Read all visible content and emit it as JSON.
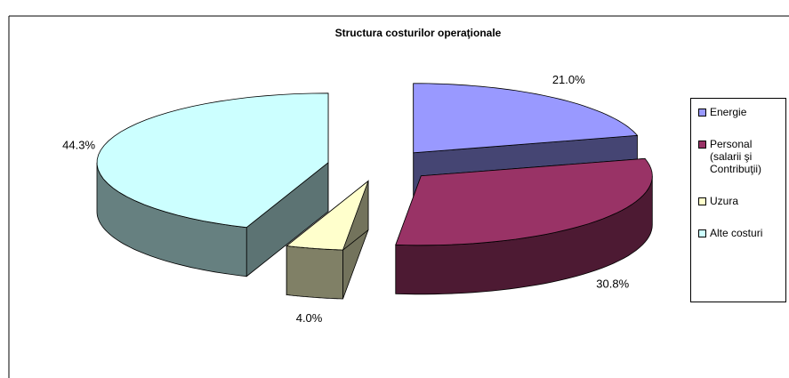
{
  "chart_data": {
    "type": "pie3d",
    "title": "Structura costurilor operaţionale",
    "categories": [
      "Energie",
      "Personal (salarii  şi Contribuţii)",
      "Uzura",
      "Alte costuri"
    ],
    "values": [
      21.0,
      30.8,
      4.0,
      44.3
    ],
    "value_labels": [
      "21.0%",
      "30.8%",
      "4.0%",
      "44.3%"
    ],
    "colors": [
      "#9999ff",
      "#993366",
      "#ffffcc",
      "#ccffff"
    ],
    "legend": "right"
  }
}
